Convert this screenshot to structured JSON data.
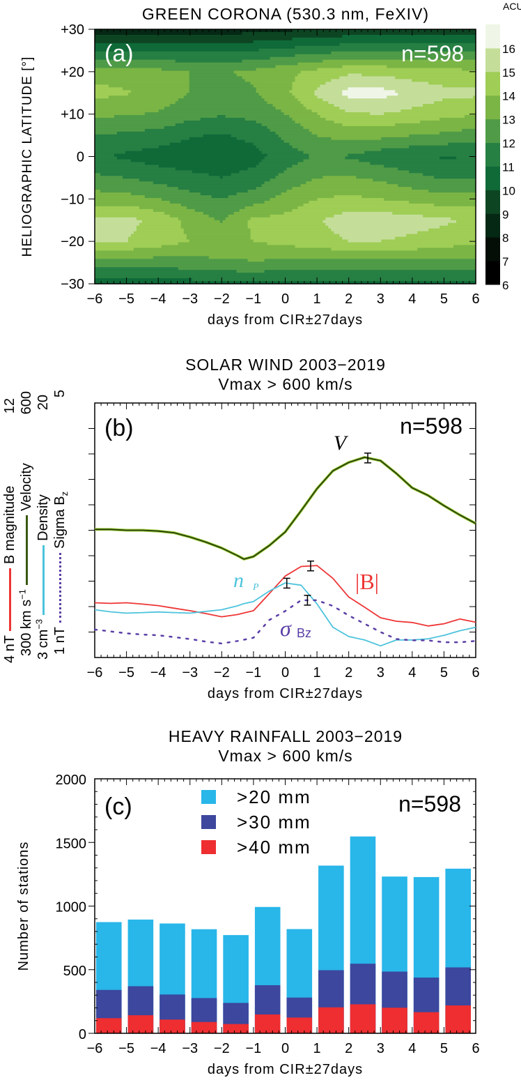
{
  "chart_data": [
    {
      "panel": "(a)",
      "type": "heatmap",
      "title": "GREEN CORONA (530.3 nm, FeXIV)",
      "annotation": "n=598",
      "xlabel": "days from CIR±27days",
      "ylabel": "HELIOGRAPHIC LATITUDE [°]",
      "xlim": [
        -6,
        6
      ],
      "ylim": [
        -30,
        30
      ],
      "x_ticks": [
        "−6",
        "−5",
        "−4",
        "−3",
        "−2",
        "−1",
        "0",
        "1",
        "2",
        "3",
        "4",
        "5",
        "6"
      ],
      "y_ticks": [
        "+30",
        "+20",
        "+10",
        "0",
        "−10",
        "−20",
        "−30"
      ],
      "colorbar": {
        "unit": "ACU",
        "ticks": [
          "6",
          "7",
          "8",
          "9",
          "10",
          "11",
          "12",
          "13",
          "14",
          "15",
          "16"
        ],
        "levels": [
          6,
          7,
          8,
          9,
          10,
          11,
          12,
          13,
          14,
          15,
          16,
          17
        ],
        "colors": [
          "#000000",
          "#040e06",
          "#052814",
          "#0d4523",
          "#0f6a38",
          "#267f43",
          "#4f9b47",
          "#7bb545",
          "#9fcd55",
          "#c4de9a",
          "#eff6e7"
        ]
      },
      "x": [
        -6,
        -5,
        -4,
        -3,
        -2,
        -1,
        0,
        1,
        2,
        3,
        4,
        5,
        6
      ],
      "y": [
        30,
        25,
        20,
        15,
        10,
        5,
        0,
        -5,
        -10,
        -15,
        -20,
        -25,
        -30
      ],
      "z": [
        [
          8.3,
          8.3,
          8.3,
          8.3,
          8.4,
          8.6,
          8.8,
          9.0,
          9.2,
          9.3,
          9.4,
          9.4,
          9.4
        ],
        [
          11.0,
          11.0,
          10.9,
          10.8,
          10.8,
          11.0,
          11.3,
          11.6,
          11.8,
          12.0,
          12.0,
          12.0,
          12.0
        ],
        [
          13.6,
          13.5,
          13.3,
          13.0,
          12.9,
          13.2,
          13.7,
          14.3,
          14.8,
          14.7,
          14.4,
          14.3,
          14.2
        ],
        [
          14.3,
          14.1,
          13.6,
          13.0,
          12.6,
          12.9,
          13.8,
          15.2,
          16.3,
          16.4,
          15.8,
          15.3,
          15.2
        ],
        [
          13.2,
          13.1,
          12.9,
          12.4,
          12.1,
          12.3,
          13.0,
          14.0,
          14.9,
          15.0,
          14.7,
          14.3,
          14.1
        ],
        [
          12.0,
          11.8,
          11.6,
          11.1,
          10.9,
          11.3,
          12.2,
          13.0,
          13.4,
          13.3,
          13.0,
          12.8,
          12.5
        ],
        [
          11.2,
          10.8,
          10.5,
          10.3,
          10.3,
          10.6,
          11.5,
          12.1,
          11.9,
          11.4,
          11.1,
          10.9,
          11.0
        ],
        [
          12.2,
          12.0,
          11.6,
          11.3,
          11.0,
          11.4,
          12.3,
          13.0,
          13.1,
          12.8,
          12.3,
          11.9,
          12.0
        ],
        [
          13.5,
          13.4,
          13.0,
          12.4,
          12.0,
          12.5,
          13.4,
          14.0,
          14.2,
          14.0,
          13.7,
          13.4,
          13.5
        ],
        [
          15.2,
          15.3,
          14.7,
          13.7,
          12.9,
          14.2,
          14.3,
          14.9,
          15.5,
          15.6,
          15.4,
          15.2,
          14.8
        ],
        [
          15.0,
          15.0,
          14.5,
          14.0,
          13.8,
          14.0,
          14.3,
          14.6,
          15.0,
          15.0,
          14.8,
          14.5,
          14.2
        ],
        [
          12.5,
          12.5,
          12.5,
          12.6,
          12.8,
          12.9,
          12.8,
          12.7,
          12.7,
          12.7,
          12.7,
          12.7,
          12.7
        ],
        [
          10.5,
          10.5,
          10.5,
          10.6,
          10.8,
          10.8,
          10.7,
          10.6,
          10.6,
          10.6,
          10.6,
          10.6,
          10.6
        ]
      ]
    },
    {
      "panel": "(b)",
      "type": "line",
      "title": [
        "SOLAR WIND 2003−2019",
        "Vmax > 600 km/s"
      ],
      "annotation": "n=598",
      "xlabel": "days from CIR±27days",
      "xlim": [
        -6,
        6
      ],
      "x_ticks": [
        "−6",
        "−5",
        "−4",
        "−3",
        "−2",
        "−1",
        "0",
        "1",
        "2",
        "3",
        "4",
        "5",
        "6"
      ],
      "x": [
        -6,
        -5.5,
        -5,
        -4.5,
        -4,
        -3.5,
        -3,
        -2.5,
        -2,
        -1.5,
        -1.3,
        -1,
        -0.5,
        0,
        0.5,
        1,
        1.5,
        2,
        2.5,
        3,
        3.5,
        4,
        4.5,
        5,
        5.5,
        6
      ],
      "axes": [
        {
          "min_label": "4 nT",
          "label": "B magnitude",
          "max_label": "12",
          "range": [
            4,
            12
          ]
        },
        {
          "min_label": "300 km s",
          "min_sup": "−1",
          "label": "Velocity",
          "max_label": "600",
          "range": [
            300,
            600
          ]
        },
        {
          "min_label": "3 cm",
          "min_sup": "−3",
          "label": "Density",
          "max_label": "20",
          "range": [
            3,
            20
          ]
        },
        {
          "min_label": "1 nT",
          "label": "Sigma B",
          "label_sub": "z",
          "max_label": "5",
          "range": [
            1,
            5
          ]
        }
      ],
      "series": [
        {
          "key": "V",
          "label": "V",
          "color": "#233d08",
          "halo": "#9fcd3c",
          "axis": 1,
          "errorbar_x": 2.6,
          "values": [
            451,
            451,
            450,
            450,
            449,
            447,
            442,
            436,
            429,
            420,
            416,
            419,
            432,
            448,
            473,
            499,
            520,
            530,
            536,
            532,
            517,
            500,
            491,
            479,
            468,
            458
          ]
        },
        {
          "key": "B",
          "label": "|B|",
          "color": "#ee3535",
          "axis": 0,
          "errorbar_x": 0.8,
          "values": [
            5.72,
            5.7,
            5.72,
            5.68,
            5.63,
            5.55,
            5.47,
            5.38,
            5.28,
            5.35,
            5.4,
            5.47,
            6.01,
            6.56,
            6.86,
            6.89,
            6.49,
            5.9,
            5.58,
            5.25,
            5.14,
            5.1,
            4.99,
            5.06,
            5.21,
            5.11
          ]
        },
        {
          "key": "n",
          "label": "n",
          "label_sub": "P",
          "color": "#4cc3dc",
          "axis": 2,
          "errorbar_x": 0.05,
          "values": [
            6.19,
            6.05,
            5.96,
            6.0,
            6.04,
            6.0,
            5.96,
            6.08,
            6.19,
            6.45,
            6.6,
            6.74,
            7.44,
            7.98,
            7.83,
            6.58,
            5.02,
            4.4,
            4.17,
            3.78,
            4.17,
            4.17,
            4.25,
            4.48,
            4.79,
            5.02
          ]
        },
        {
          "key": "sigma",
          "label": "σ",
          "label_sub": "Bz",
          "color": "#5a3ea6",
          "axis": 3,
          "dotted": true,
          "errorbar_x": 0.7,
          "values": [
            1.44,
            1.41,
            1.38,
            1.36,
            1.35,
            1.32,
            1.29,
            1.25,
            1.22,
            1.26,
            1.28,
            1.31,
            1.59,
            1.73,
            1.9,
            1.9,
            1.81,
            1.66,
            1.53,
            1.4,
            1.29,
            1.27,
            1.27,
            1.24,
            1.24,
            1.26
          ]
        }
      ]
    },
    {
      "panel": "(c)",
      "type": "bar",
      "title": [
        "HEAVY RAINFALL 2003−2019",
        "Vmax > 600 km/s"
      ],
      "annotation": "n=598",
      "xlabel": "days from CIR±27days",
      "ylabel": "Number of stations",
      "xlim": [
        -6,
        6
      ],
      "ylim": [
        0,
        2000
      ],
      "x_ticks": [
        "−6",
        "−5",
        "−4",
        "−3",
        "−2",
        "−1",
        "0",
        "1",
        "2",
        "3",
        "4",
        "5",
        "6"
      ],
      "y_ticks": [
        "2000",
        "1500",
        "1000",
        "500",
        "0"
      ],
      "bin_start": [
        -6,
        -5,
        -4,
        -3,
        -2,
        -1,
        0,
        1,
        2,
        3,
        4,
        5
      ],
      "series": [
        {
          "name": ">20 mm",
          "color": "#29b6e9",
          "values": [
            874,
            894,
            863,
            818,
            772,
            993,
            819,
            1318,
            1547,
            1232,
            1228,
            1294
          ]
        },
        {
          "name": ">30 mm",
          "color": "#3c479d",
          "values": [
            341,
            370,
            305,
            277,
            239,
            378,
            281,
            496,
            547,
            485,
            438,
            518
          ]
        },
        {
          "name": ">40 mm",
          "color": "#ee2e31",
          "values": [
            119,
            142,
            108,
            89,
            73,
            148,
            124,
            204,
            228,
            201,
            166,
            219
          ]
        }
      ]
    }
  ]
}
